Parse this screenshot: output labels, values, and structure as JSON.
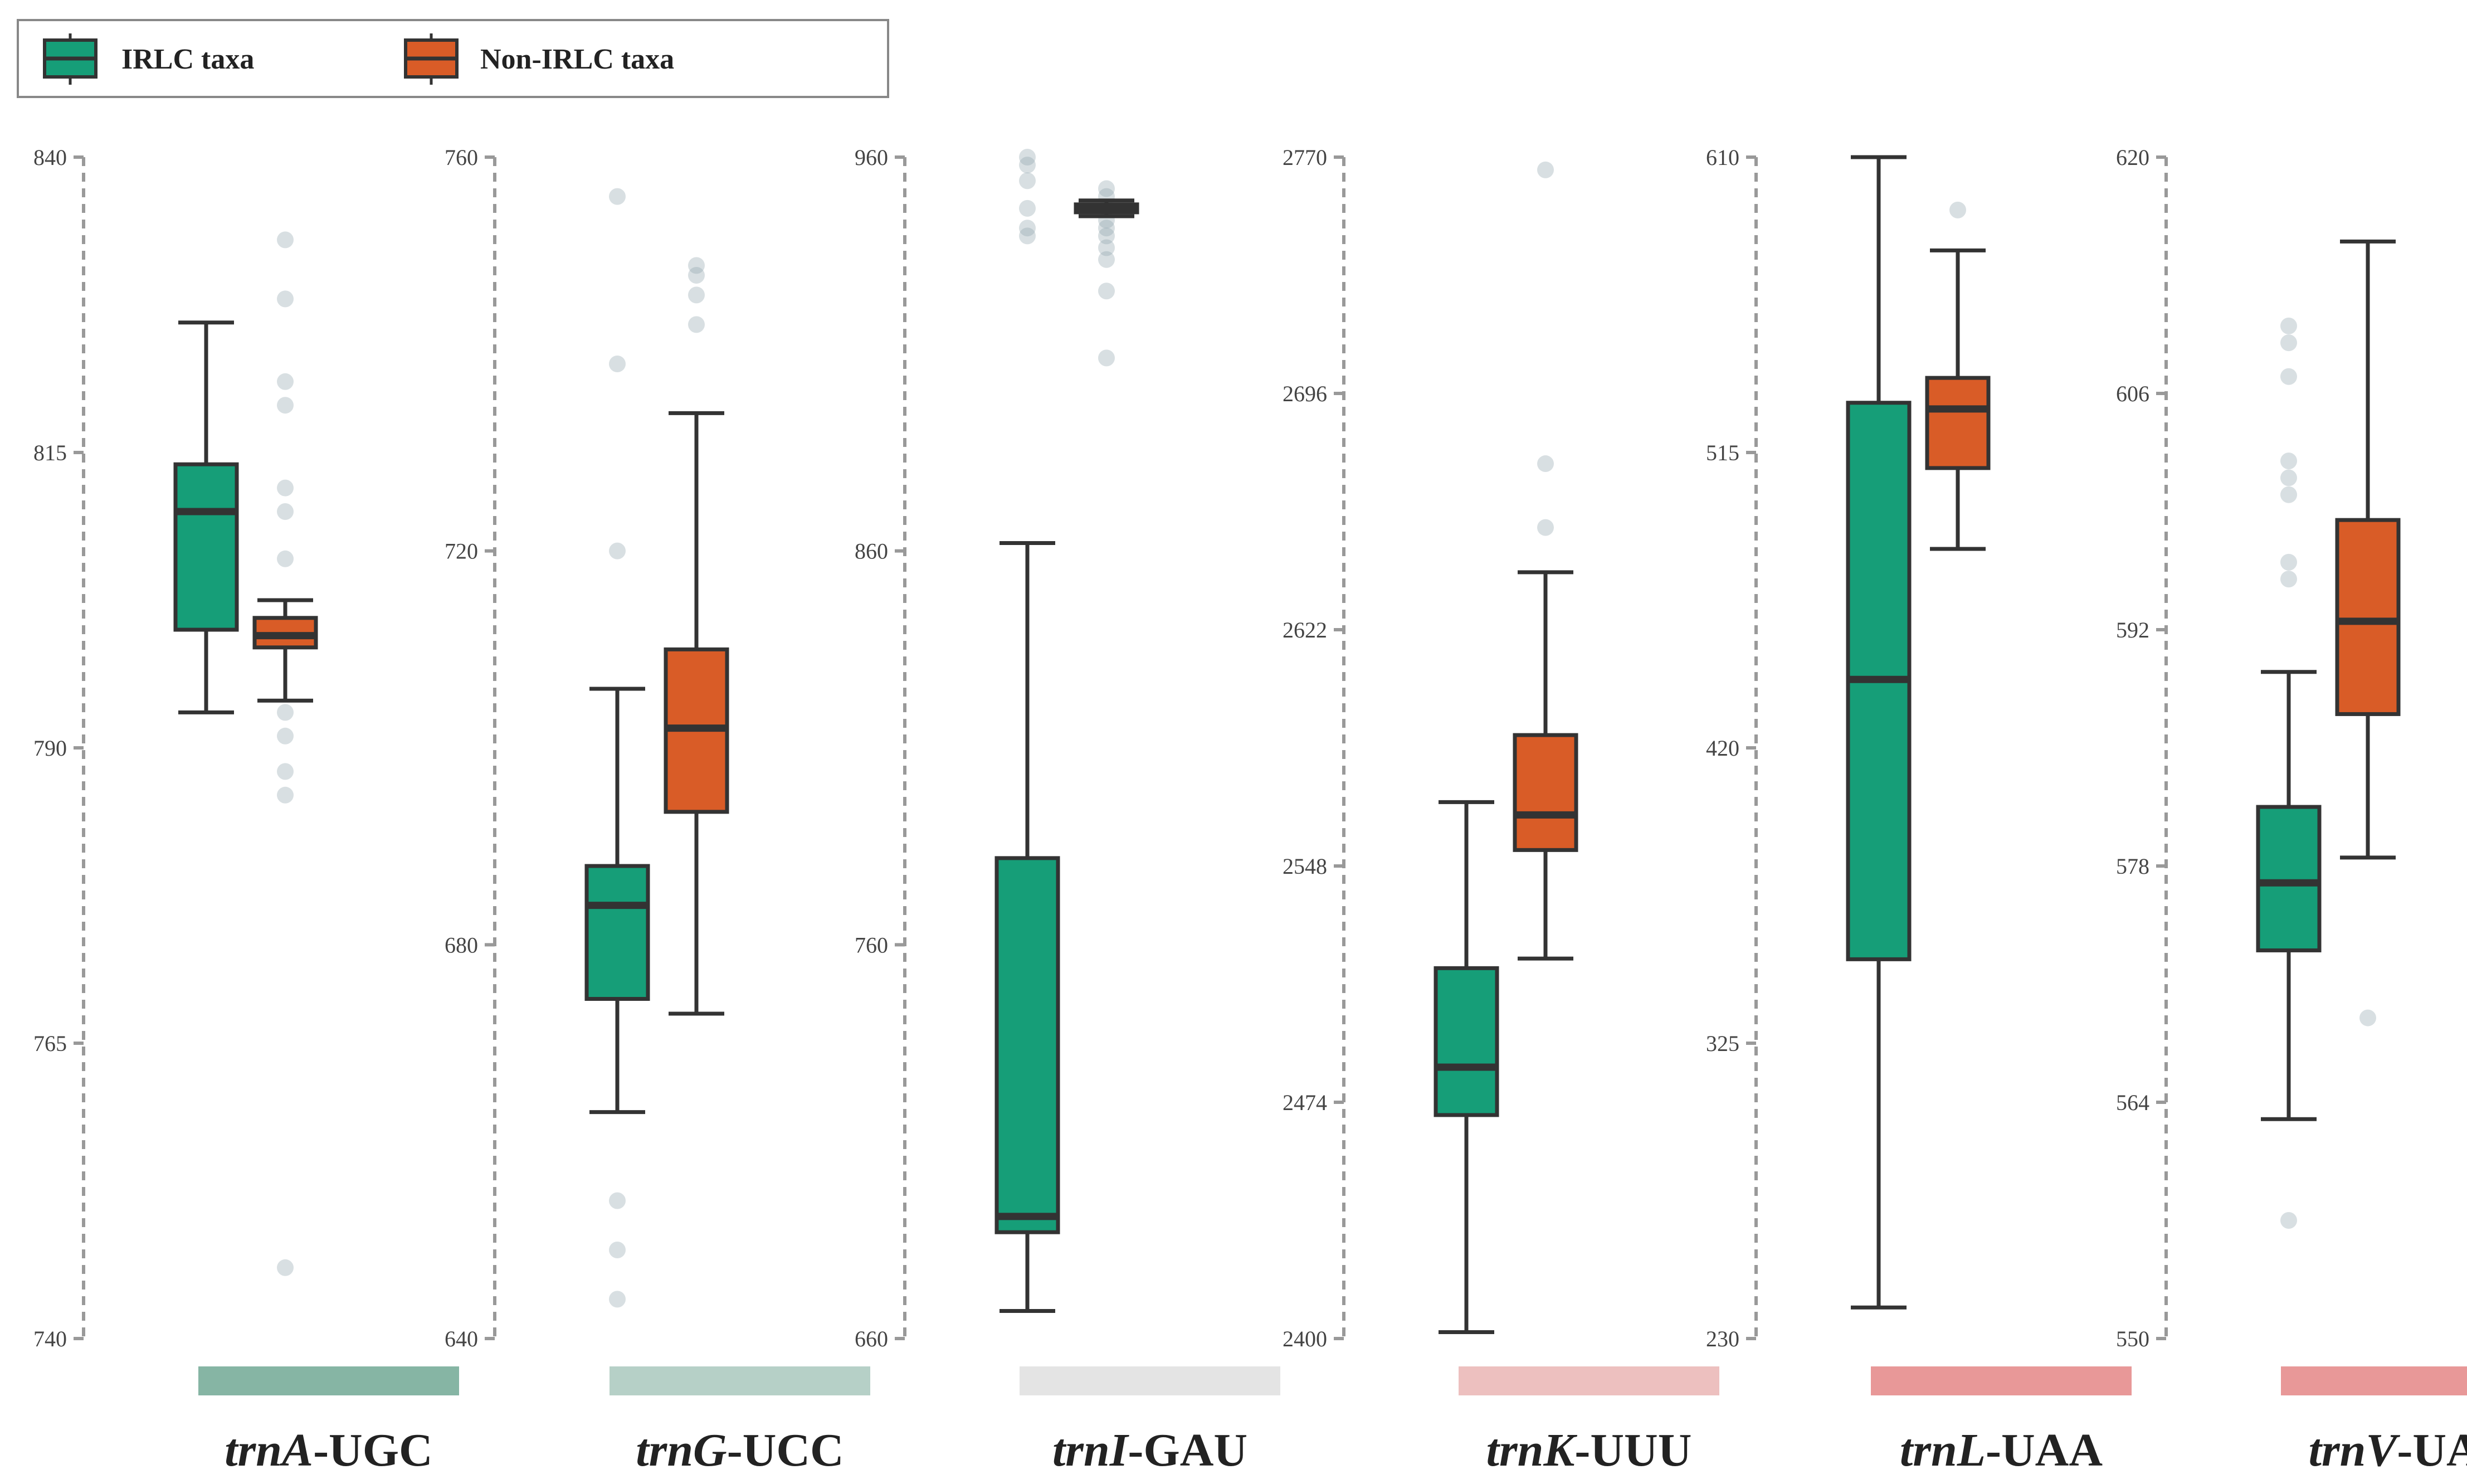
{
  "chart_data": {
    "type": "box",
    "legend": {
      "placement": "top-left",
      "entries": [
        {
          "label": "IRLC taxa",
          "color": "#169e78"
        },
        {
          "label": "Non-IRLC taxa",
          "color": "#d95c27"
        }
      ]
    },
    "colors": {
      "irlc": "#169e78",
      "non_irlc": "#d95c27",
      "line": "#333333",
      "outlier": "#8fa3ad",
      "axis": "#999999"
    },
    "panels": [
      {
        "gene_italic": "trnA",
        "gene_suffix": "-UGC",
        "ylim": [
          740,
          840
        ],
        "ticks": [
          "740",
          "765",
          "790",
          "815",
          "840"
        ],
        "strip_color": "#86b5a4",
        "boxes": [
          {
            "group": "IRLC taxa",
            "min": 793,
            "q1": 800,
            "median": 810,
            "q3": 814,
            "max": 826,
            "outliers": []
          },
          {
            "group": "Non-IRLC taxa",
            "min": 794,
            "q1": 798.5,
            "median": 799.5,
            "q3": 801,
            "max": 802.5,
            "outliers": [
              833,
              828,
              821,
              819,
              812,
              810,
              806,
              793,
              791,
              788,
              786,
              746
            ]
          }
        ]
      },
      {
        "gene_italic": "trnG",
        "gene_suffix": "-UCC",
        "ylim": [
          640,
          760
        ],
        "ticks": [
          "640",
          "680",
          "720",
          "760"
        ],
        "strip_color": "#b6d0c7",
        "boxes": [
          {
            "group": "IRLC taxa",
            "min": 663,
            "q1": 674.5,
            "median": 684,
            "q3": 688,
            "max": 706,
            "outliers": [
              756,
              739,
              720,
              654,
              649,
              644
            ]
          },
          {
            "group": "Non-IRLC taxa",
            "min": 673,
            "q1": 693.5,
            "median": 702,
            "q3": 710,
            "max": 734,
            "outliers": [
              749,
              748,
              746,
              743
            ]
          }
        ]
      },
      {
        "gene_italic": "trnI",
        "gene_suffix": "-GAU",
        "ylim": [
          660,
          960
        ],
        "ticks": [
          "660",
          "760",
          "860",
          "960"
        ],
        "strip_color": "#e4e4e4",
        "boxes": [
          {
            "group": "IRLC taxa",
            "min": 667,
            "q1": 687,
            "median": 691,
            "q3": 782,
            "max": 862,
            "outliers": [
              960,
              958,
              954,
              947,
              942,
              940
            ]
          },
          {
            "group": "Non-IRLC taxa",
            "min": 945,
            "q1": 946,
            "median": 947,
            "q3": 948,
            "max": 949,
            "outliers": [
              952,
              950,
              944,
              942,
              940,
              937,
              934,
              926,
              909
            ]
          }
        ]
      },
      {
        "gene_italic": "trnK",
        "gene_suffix": "-UUU",
        "ylim": [
          2400,
          2770
        ],
        "ticks": [
          "2400",
          "2474",
          "2548",
          "2622",
          "2696",
          "2770"
        ],
        "strip_color": "#edc0bf",
        "boxes": [
          {
            "group": "IRLC taxa",
            "min": 2402,
            "q1": 2470,
            "median": 2485,
            "q3": 2516,
            "max": 2568,
            "outliers": []
          },
          {
            "group": "Non-IRLC taxa",
            "min": 2519,
            "q1": 2553,
            "median": 2564,
            "q3": 2589,
            "max": 2640,
            "outliers": [
              2766,
              2674,
              2654
            ]
          }
        ]
      },
      {
        "gene_italic": "trnL",
        "gene_suffix": "-UAA",
        "ylim": [
          230,
          610
        ],
        "ticks": [
          "230",
          "325",
          "420",
          "515",
          "610"
        ],
        "strip_color": "#e89898",
        "boxes": [
          {
            "group": "IRLC taxa",
            "min": 240,
            "q1": 352,
            "median": 442,
            "q3": 531,
            "max": 610,
            "outliers": []
          },
          {
            "group": "Non-IRLC taxa",
            "min": 484,
            "q1": 510,
            "median": 529,
            "q3": 539,
            "max": 580,
            "outliers": [
              593
            ]
          }
        ]
      },
      {
        "gene_italic": "trnV",
        "gene_suffix": "-UAC",
        "ylim": [
          550,
          620
        ],
        "ticks": [
          "550",
          "564",
          "578",
          "592",
          "606",
          "620"
        ],
        "strip_color": "#e89898",
        "boxes": [
          {
            "group": "IRLC taxa",
            "min": 563,
            "q1": 573,
            "median": 577,
            "q3": 581.5,
            "max": 589.5,
            "outliers": [
              610,
              609,
              607,
              602,
              601,
              600,
              596,
              595,
              557
            ]
          },
          {
            "group": "Non-IRLC taxa",
            "min": 578.5,
            "q1": 587,
            "median": 592.5,
            "q3": 598.5,
            "max": 615,
            "outliers": [
              569
            ]
          }
        ]
      }
    ]
  }
}
